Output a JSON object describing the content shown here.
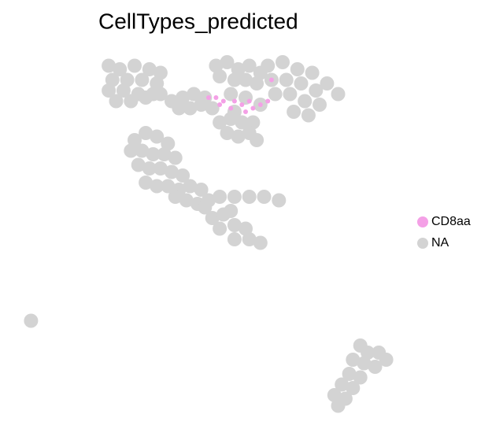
{
  "chart_data": {
    "type": "scatter",
    "title": "CellTypes_predicted",
    "xlim": [
      0,
      100
    ],
    "ylim": [
      0,
      100
    ],
    "series": [
      {
        "name": "NA",
        "color": "#d3d3d3",
        "x": [
          23,
          26,
          30,
          34,
          37,
          24,
          28,
          32,
          36,
          23,
          27,
          31,
          35,
          25,
          29,
          33,
          37,
          40,
          43,
          46,
          49,
          42,
          45,
          48,
          51,
          52,
          55,
          58,
          61,
          64,
          53,
          57,
          60,
          63,
          66,
          70,
          74,
          78,
          82,
          85,
          67,
          71,
          75,
          79,
          68,
          72,
          76,
          80,
          73,
          77,
          56,
          60,
          64,
          57,
          53,
          56,
          59,
          62,
          55,
          58,
          61,
          63,
          30,
          33,
          36,
          39,
          29,
          32,
          35,
          38,
          41,
          31,
          34,
          37,
          40,
          43,
          33,
          36,
          39,
          42,
          45,
          48,
          41,
          44,
          47,
          50,
          53,
          57,
          61,
          65,
          69,
          49,
          51,
          54,
          53,
          57,
          60,
          57,
          61,
          64,
          56,
          2,
          91,
          93,
          96,
          98,
          89,
          92,
          95,
          88,
          91,
          86,
          89,
          84,
          87,
          85
        ],
        "y": [
          97,
          96,
          97,
          96,
          95,
          93,
          93,
          93,
          92,
          90,
          90,
          89,
          89,
          87,
          87,
          88,
          89,
          87,
          88,
          89,
          88,
          85,
          85,
          86,
          85,
          97,
          98,
          96,
          97,
          95,
          94,
          93,
          93,
          92,
          97,
          98,
          96,
          95,
          92,
          89,
          93,
          93,
          92,
          90,
          89,
          89,
          87,
          86,
          84,
          83,
          89,
          88,
          86,
          84,
          81,
          82,
          81,
          81,
          78,
          77,
          78,
          76,
          76,
          78,
          77,
          75,
          73,
          73,
          72,
          72,
          71,
          69,
          68,
          68,
          67,
          66,
          64,
          63,
          63,
          62,
          63,
          62,
          60,
          59,
          58,
          59,
          60,
          60,
          60,
          60,
          59,
          57,
          54,
          55,
          51,
          52,
          51,
          48,
          48,
          47,
          56,
          25,
          18,
          16,
          16,
          14,
          14,
          13,
          12,
          10,
          9,
          7,
          6,
          4,
          3,
          1
        ]
      },
      {
        "name": "CD8aa",
        "color": "#f4a0e6",
        "x": [
          50,
          52,
          54,
          53,
          57,
          59,
          61,
          62,
          64,
          66,
          60,
          56,
          67
        ],
        "y": [
          88,
          88,
          87,
          86,
          87,
          86,
          87,
          85,
          86,
          87,
          84,
          85,
          93
        ]
      }
    ],
    "legend": "right"
  }
}
